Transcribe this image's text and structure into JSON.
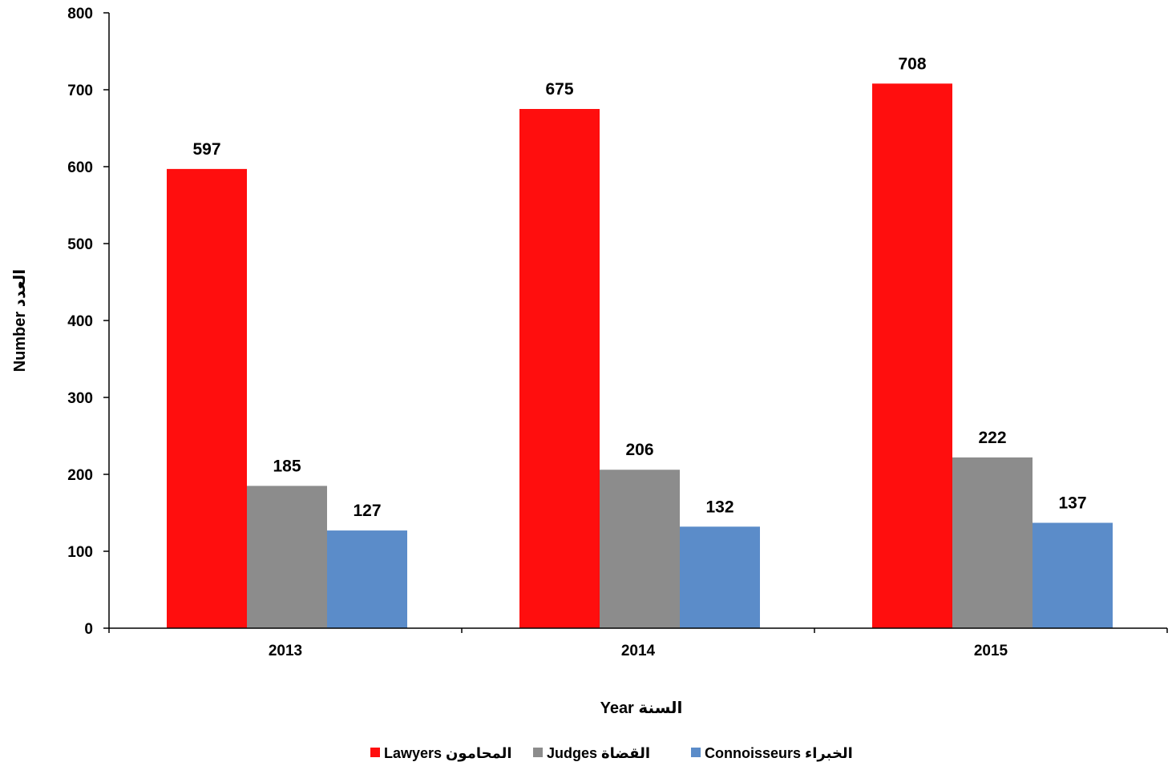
{
  "chart_data": {
    "type": "bar",
    "categories": [
      "2013",
      "2014",
      "2015"
    ],
    "series": [
      {
        "name": "Lawyers المحامون",
        "color": "#ff0e0e",
        "values": [
          597,
          675,
          708
        ]
      },
      {
        "name": "Judges القضاة",
        "color": "#8c8c8c",
        "values": [
          185,
          206,
          222
        ]
      },
      {
        "name": "Connoisseurs الخبراء",
        "color": "#5b8cc9",
        "values": [
          127,
          132,
          137
        ]
      }
    ],
    "title": "",
    "xlabel": "Year السنة",
    "ylabel": "Number العدد",
    "ylim": [
      0,
      800
    ],
    "yticks": [
      "0",
      "100",
      "200",
      "300",
      "400",
      "500",
      "600",
      "700",
      "800"
    ],
    "grid": false,
    "legend_position": "bottom"
  }
}
